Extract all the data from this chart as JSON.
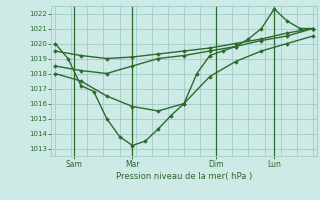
{
  "bg_color": "#ceeae6",
  "grid_color": "#9eccc6",
  "line_color": "#2d6a2d",
  "marker_color": "#2d6a2d",
  "xlabel": "Pression niveau de la mer( hPa )",
  "ylim": [
    1012.5,
    1022.5
  ],
  "yticks": [
    1013,
    1014,
    1015,
    1016,
    1017,
    1018,
    1019,
    1020,
    1021,
    1022
  ],
  "xtick_labels": [
    "Sam",
    "Mar",
    "Dim",
    "Lun"
  ],
  "num_x_gridlines": 17,
  "series": [
    {
      "x": [
        0,
        1,
        2,
        3,
        4,
        5,
        6,
        7,
        8,
        9,
        10,
        11,
        12,
        13,
        14,
        15,
        16,
        17,
        18,
        19,
        20
      ],
      "y": [
        1020,
        1019,
        1017.2,
        1016.8,
        1015.0,
        1013.8,
        1013.2,
        1013.5,
        1014.3,
        1015.2,
        1016.0,
        1018.0,
        1019.2,
        1019.5,
        1019.8,
        1020.3,
        1021.0,
        1022.3,
        1021.5,
        1021.0,
        1021.0
      ]
    },
    {
      "x": [
        0,
        2,
        4,
        6,
        8,
        10,
        12,
        14,
        16,
        18,
        20
      ],
      "y": [
        1018.0,
        1017.5,
        1016.5,
        1015.8,
        1015.5,
        1016.0,
        1017.8,
        1018.8,
        1019.5,
        1020.0,
        1020.5
      ]
    },
    {
      "x": [
        0,
        2,
        4,
        6,
        8,
        10,
        12,
        14,
        16,
        18,
        20
      ],
      "y": [
        1018.5,
        1018.2,
        1018.0,
        1018.5,
        1019.0,
        1019.2,
        1019.5,
        1019.8,
        1020.2,
        1020.5,
        1021.0
      ]
    },
    {
      "x": [
        0,
        2,
        4,
        6,
        8,
        10,
        12,
        14,
        16,
        18,
        20
      ],
      "y": [
        1019.5,
        1019.2,
        1019.0,
        1019.1,
        1019.3,
        1019.5,
        1019.7,
        1020.0,
        1020.3,
        1020.7,
        1021.0
      ]
    }
  ],
  "vline_x": [
    1.5,
    6.0,
    12.5,
    17.0
  ],
  "xtick_x": [
    1.5,
    6.0,
    12.5,
    17.0
  ],
  "xmin": 0,
  "xmax": 20
}
